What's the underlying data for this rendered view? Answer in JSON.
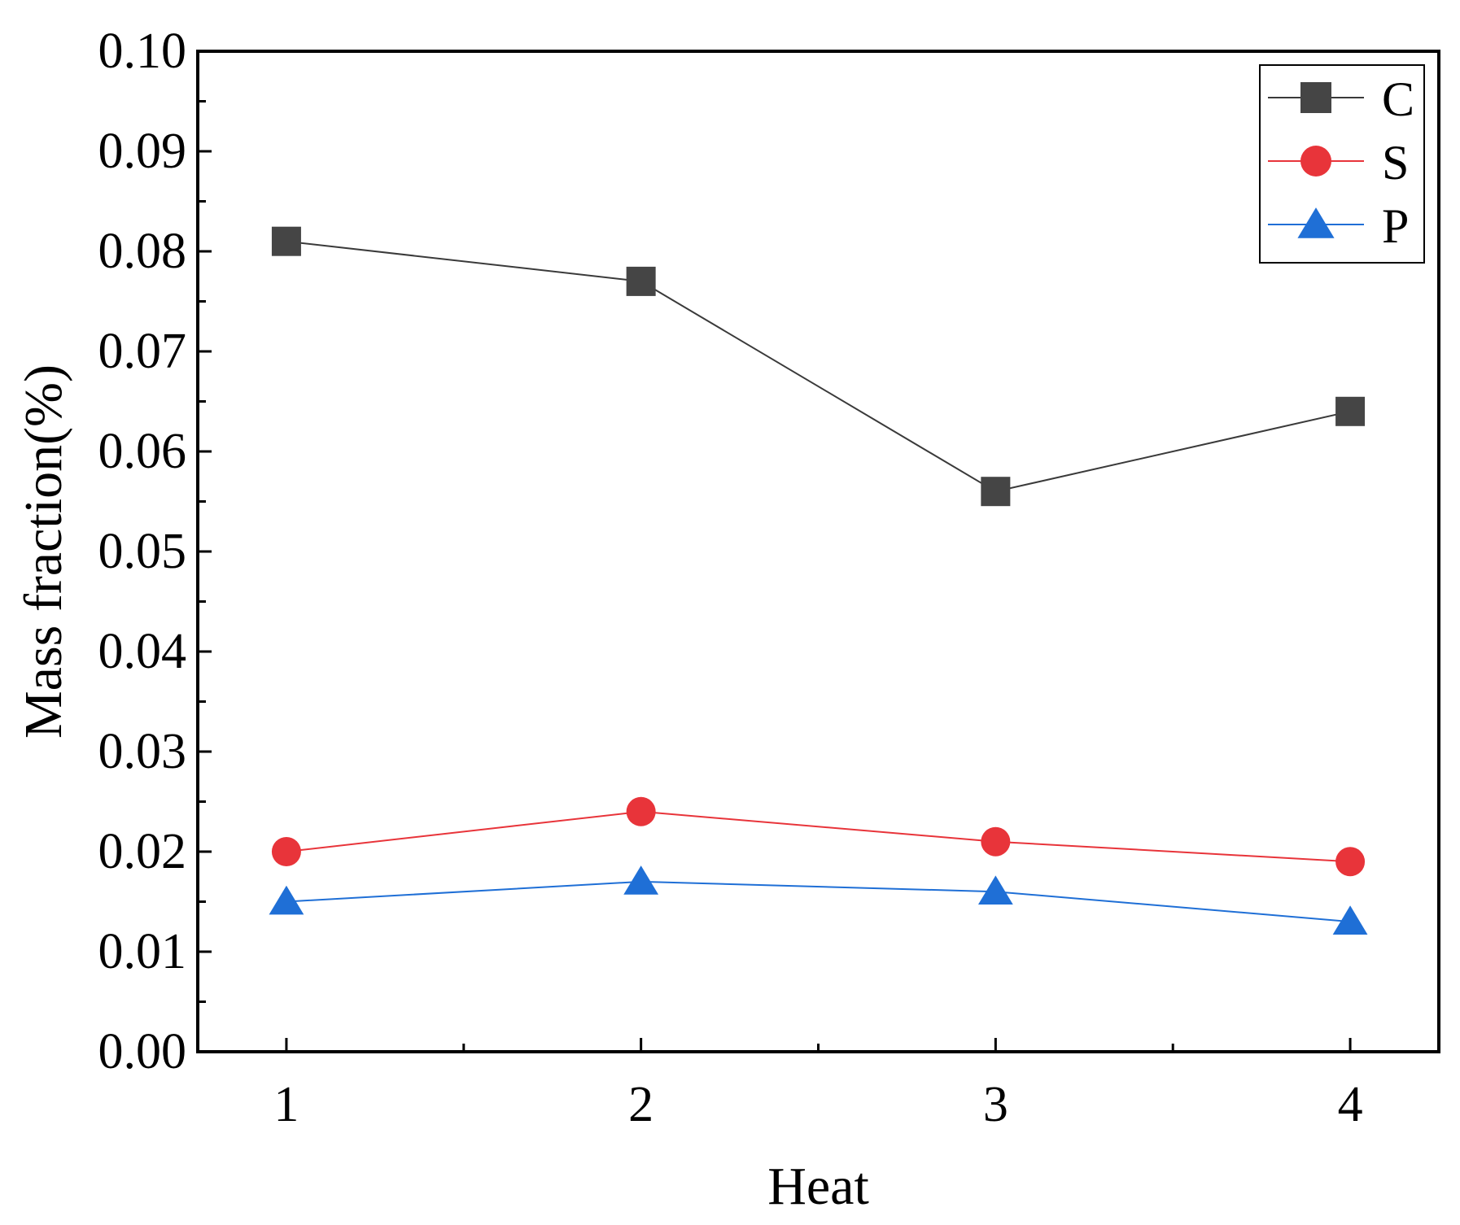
{
  "chart_data": {
    "type": "line",
    "title": "",
    "xlabel": "Heat",
    "ylabel": "Mass fraction(%)",
    "x": [
      1,
      2,
      3,
      4
    ],
    "x_tick_labels": [
      "1",
      "2",
      "3",
      "4"
    ],
    "xlim": [
      0.75,
      4.25
    ],
    "ylim": [
      0.0,
      0.1
    ],
    "y_ticks": [
      0.0,
      0.01,
      0.02,
      0.03,
      0.04,
      0.05,
      0.06,
      0.07,
      0.08,
      0.09,
      0.1
    ],
    "y_tick_labels": [
      "0.00",
      "0.01",
      "0.02",
      "0.03",
      "0.04",
      "0.05",
      "0.06",
      "0.07",
      "0.08",
      "0.09",
      "0.10"
    ],
    "grid": false,
    "legend_position": "top-right",
    "series": [
      {
        "name": "C",
        "values": [
          0.081,
          0.077,
          0.056,
          0.064
        ],
        "color": "#454545",
        "line_color": "#3a3a3a",
        "marker": "square"
      },
      {
        "name": "S",
        "values": [
          0.02,
          0.024,
          0.021,
          0.019
        ],
        "color": "#e8343a",
        "line_color": "#e8343a",
        "marker": "circle"
      },
      {
        "name": "P",
        "values": [
          0.015,
          0.017,
          0.016,
          0.013
        ],
        "color": "#1f6fd6",
        "line_color": "#1f6fd6",
        "marker": "triangle"
      }
    ]
  }
}
